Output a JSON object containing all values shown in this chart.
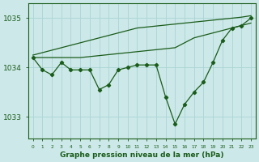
{
  "x": [
    0,
    1,
    2,
    3,
    4,
    5,
    6,
    7,
    8,
    9,
    10,
    11,
    12,
    13,
    14,
    15,
    16,
    17,
    18,
    19,
    20,
    21,
    22,
    23
  ],
  "line_upper": [
    1034.25,
    1034.3,
    1034.35,
    1034.4,
    1034.45,
    1034.5,
    1034.55,
    1034.6,
    1034.65,
    1034.7,
    1034.75,
    1034.8,
    1034.82,
    1034.84,
    1034.86,
    1034.88,
    1034.9,
    1034.92,
    1034.94,
    1034.96,
    1034.98,
    1035.0,
    1035.02,
    1035.05
  ],
  "line_mid": [
    1034.2,
    1034.2,
    1034.2,
    1034.2,
    1034.2,
    1034.2,
    1034.22,
    1034.24,
    1034.26,
    1034.28,
    1034.3,
    1034.32,
    1034.34,
    1034.36,
    1034.38,
    1034.4,
    1034.5,
    1034.6,
    1034.65,
    1034.7,
    1034.75,
    1034.8,
    1034.85,
    1034.9
  ],
  "line_data": [
    1034.2,
    1033.95,
    1033.85,
    1034.1,
    1033.95,
    1033.95,
    1033.95,
    1033.55,
    1033.65,
    1033.95,
    1034.0,
    1034.05,
    1034.05,
    1034.05,
    1033.4,
    1032.85,
    1033.25,
    1033.5,
    1033.7,
    1034.1,
    1034.55,
    1034.8,
    1034.85,
    1035.0
  ],
  "bg_color": "#cce8e8",
  "grid_color": "#aad4d4",
  "line_color": "#1a5c1a",
  "ylabel_ticks": [
    1033,
    1034,
    1035
  ],
  "xlabel_ticks": [
    0,
    1,
    2,
    3,
    4,
    5,
    6,
    7,
    8,
    9,
    10,
    11,
    12,
    13,
    14,
    15,
    16,
    17,
    18,
    19,
    20,
    21,
    22,
    23
  ],
  "xlabel": "Graphe pression niveau de la mer (hPa)",
  "ylim": [
    1032.55,
    1035.3
  ],
  "xlim": [
    -0.5,
    23.5
  ]
}
